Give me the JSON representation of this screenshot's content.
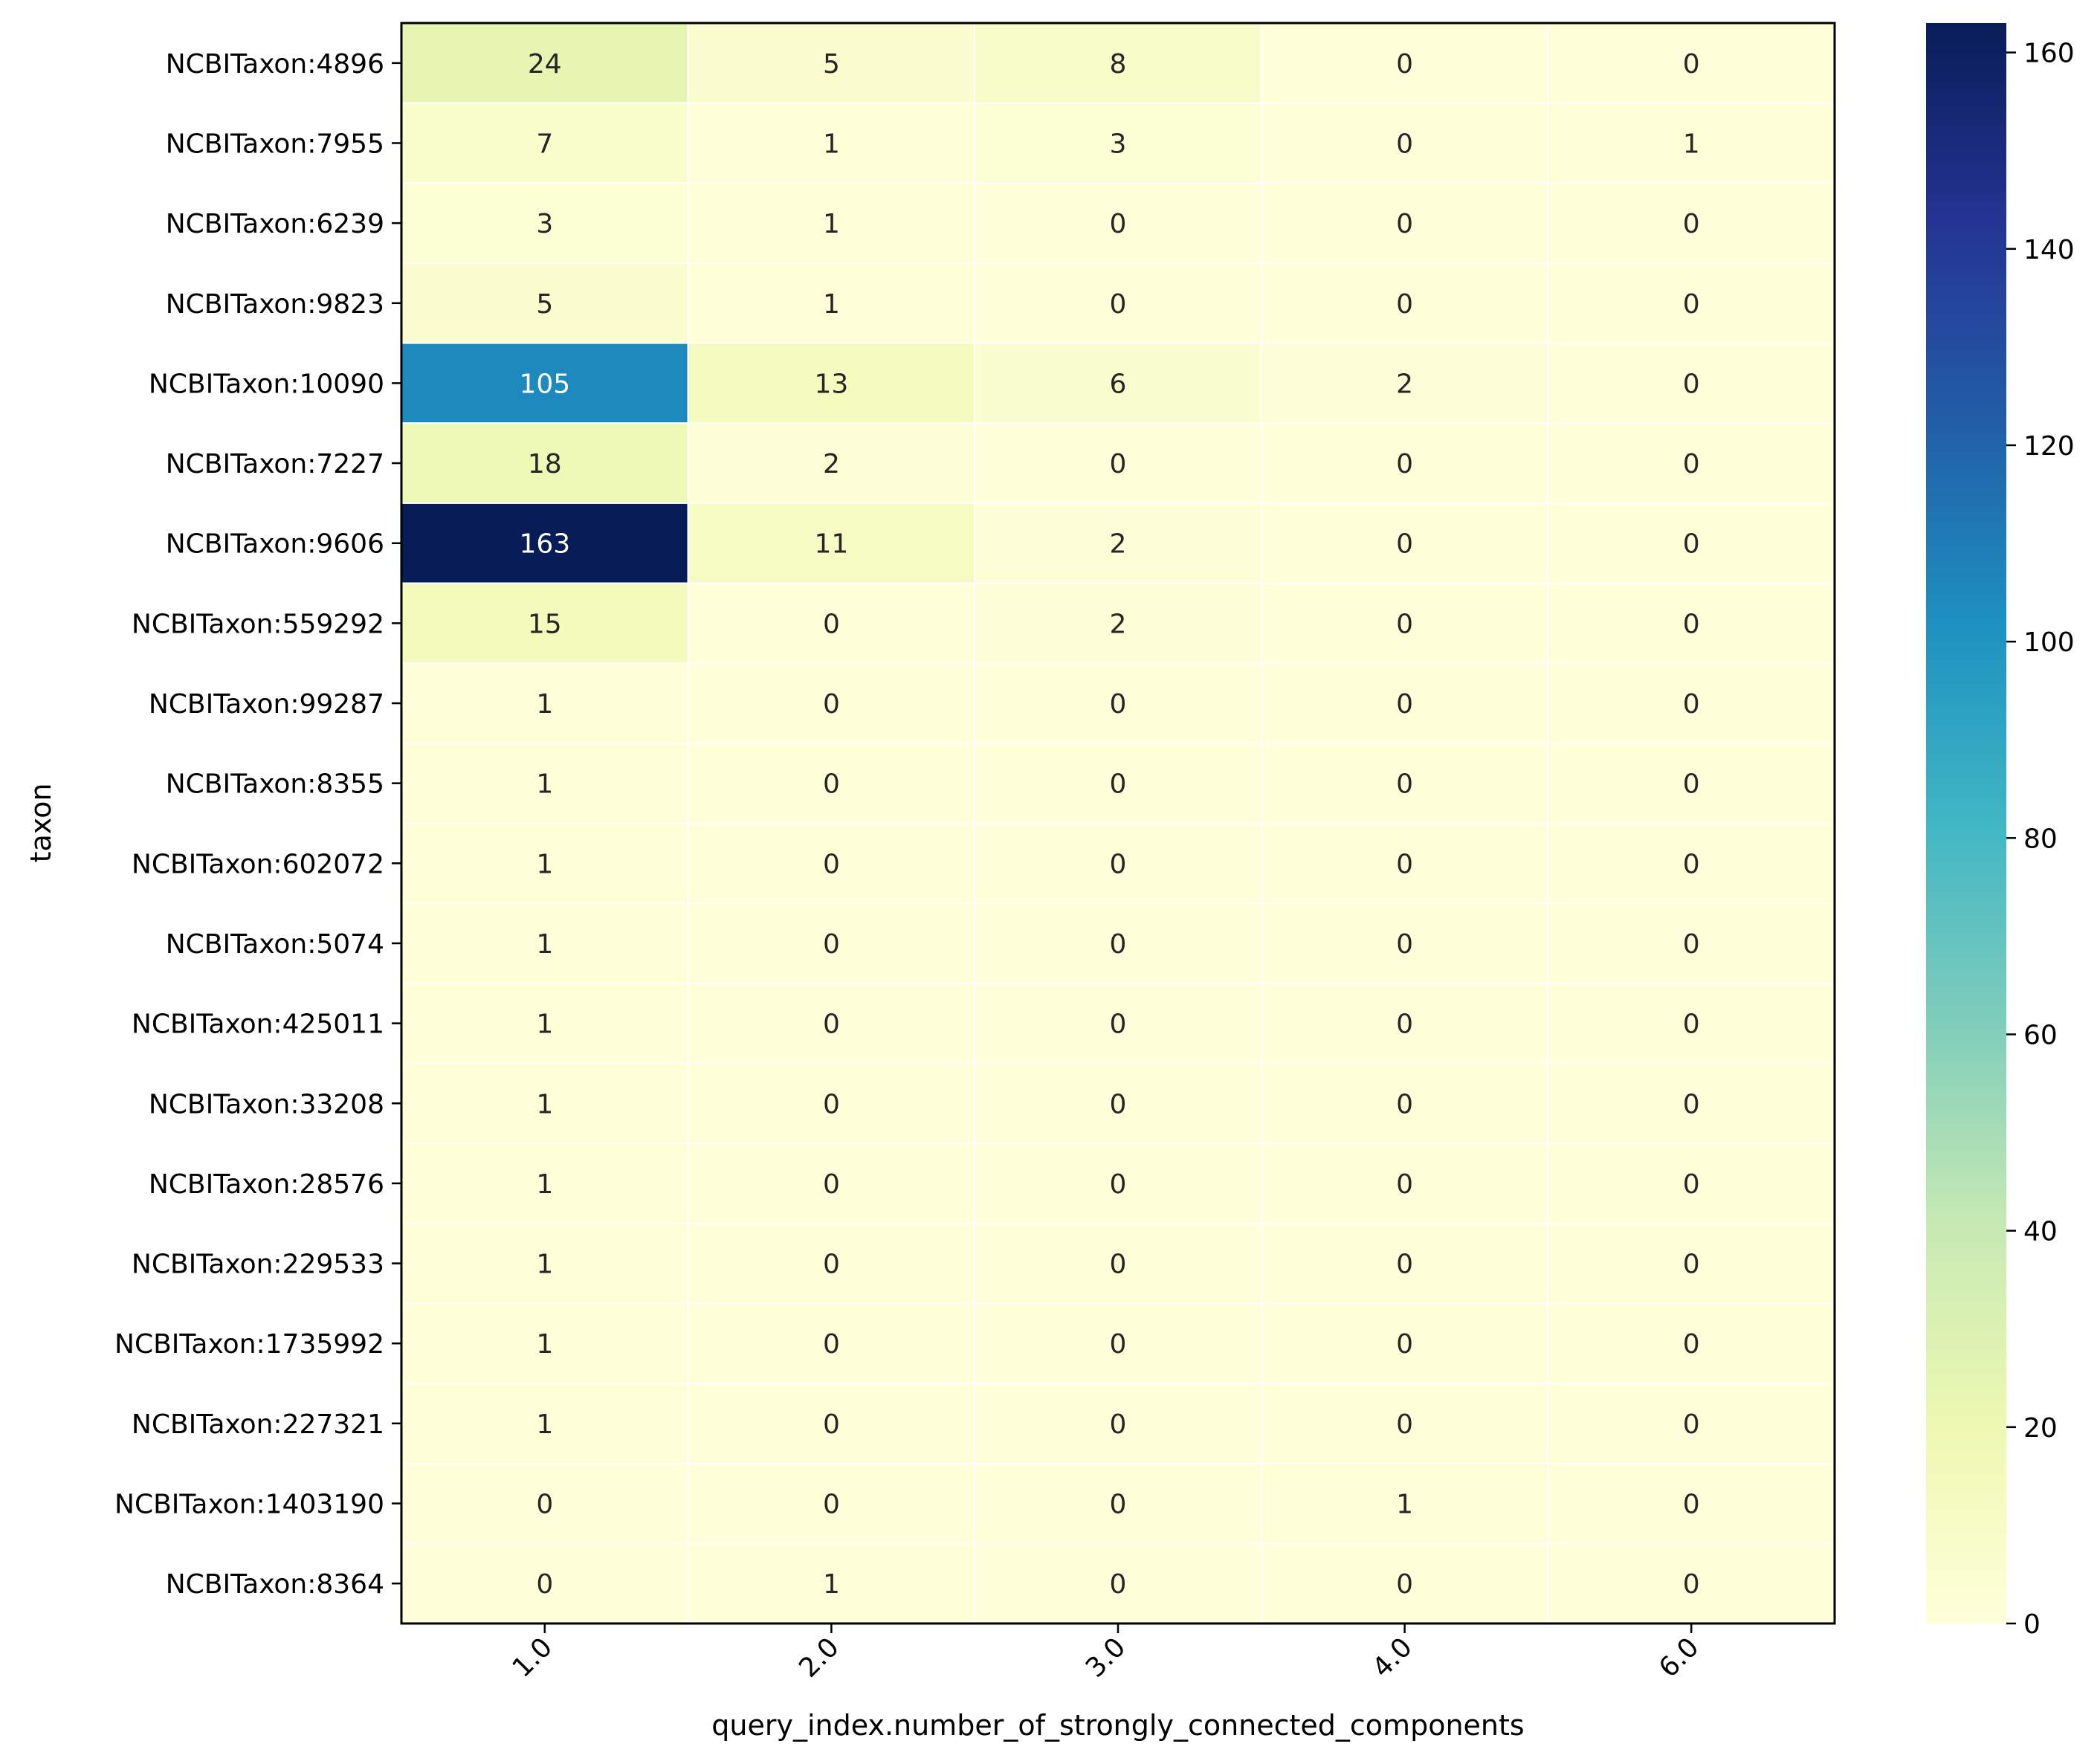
{
  "chart_data": {
    "type": "heatmap",
    "title": "",
    "xlabel": "query_index.number_of_strongly_connected_components",
    "ylabel": "taxon",
    "x_categories": [
      "1.0",
      "2.0",
      "3.0",
      "4.0",
      "6.0"
    ],
    "y_categories": [
      "NCBITaxon:4896",
      "NCBITaxon:7955",
      "NCBITaxon:6239",
      "NCBITaxon:9823",
      "NCBITaxon:10090",
      "NCBITaxon:7227",
      "NCBITaxon:9606",
      "NCBITaxon:559292",
      "NCBITaxon:99287",
      "NCBITaxon:8355",
      "NCBITaxon:602072",
      "NCBITaxon:5074",
      "NCBITaxon:425011",
      "NCBITaxon:33208",
      "NCBITaxon:28576",
      "NCBITaxon:229533",
      "NCBITaxon:1735992",
      "NCBITaxon:227321",
      "NCBITaxon:1403190",
      "NCBITaxon:8364"
    ],
    "values": [
      [
        24,
        5,
        8,
        0,
        0
      ],
      [
        7,
        1,
        3,
        0,
        1
      ],
      [
        3,
        1,
        0,
        0,
        0
      ],
      [
        5,
        1,
        0,
        0,
        0
      ],
      [
        105,
        13,
        6,
        2,
        0
      ],
      [
        18,
        2,
        0,
        0,
        0
      ],
      [
        163,
        11,
        2,
        0,
        0
      ],
      [
        15,
        0,
        2,
        0,
        0
      ],
      [
        1,
        0,
        0,
        0,
        0
      ],
      [
        1,
        0,
        0,
        0,
        0
      ],
      [
        1,
        0,
        0,
        0,
        0
      ],
      [
        1,
        0,
        0,
        0,
        0
      ],
      [
        1,
        0,
        0,
        0,
        0
      ],
      [
        1,
        0,
        0,
        0,
        0
      ],
      [
        1,
        0,
        0,
        0,
        0
      ],
      [
        1,
        0,
        0,
        0,
        0
      ],
      [
        1,
        0,
        0,
        0,
        0
      ],
      [
        1,
        0,
        0,
        0,
        0
      ],
      [
        0,
        0,
        0,
        1,
        0
      ],
      [
        0,
        1,
        0,
        0,
        0
      ]
    ],
    "colorbar": {
      "colormap": "YlGnBu",
      "range": [
        0,
        163
      ],
      "ticks": [
        0,
        20,
        40,
        60,
        80,
        100,
        120,
        140,
        160
      ]
    },
    "grid": false,
    "cell_annotations": true
  }
}
